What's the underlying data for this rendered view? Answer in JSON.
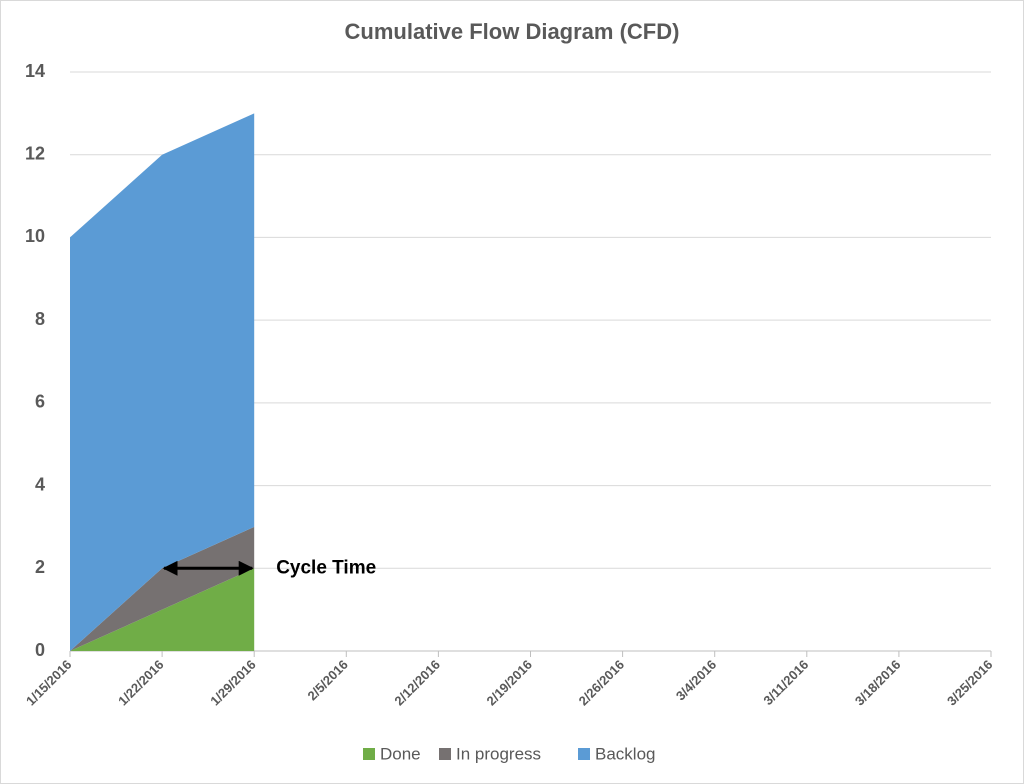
{
  "chart_data": {
    "type": "stacked_area",
    "title": "Cumulative Flow Diagram (CFD)",
    "categories": [
      "1/15/2016",
      "1/22/2016",
      "1/29/2016",
      "2/5/2016",
      "2/12/2016",
      "2/19/2016",
      "2/26/2016",
      "3/4/2016",
      "3/11/2016",
      "3/18/2016",
      "3/25/2016"
    ],
    "series": [
      {
        "name": "Done",
        "color": "#70ad47",
        "values": [
          0,
          1,
          2,
          null,
          null,
          null,
          null,
          null,
          null,
          null,
          null
        ]
      },
      {
        "name": "In progress",
        "color": "#767171",
        "values": [
          0,
          1,
          1,
          null,
          null,
          null,
          null,
          null,
          null,
          null,
          null
        ]
      },
      {
        "name": "Backlog",
        "color": "#5b9bd5",
        "values": [
          10,
          10,
          10,
          null,
          null,
          null,
          null,
          null,
          null,
          null,
          null
        ]
      }
    ],
    "ylim": [
      0,
      14
    ],
    "yticks": [
      0,
      2,
      4,
      6,
      8,
      10,
      12,
      14
    ],
    "grid": true,
    "legend": "bottom",
    "annotation": "Cycle Time"
  }
}
